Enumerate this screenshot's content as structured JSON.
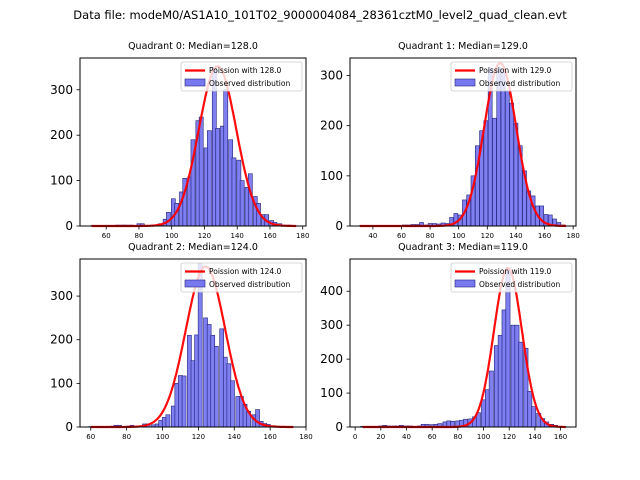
{
  "suptitle": "Data file: modeM0/AS1A10_101T02_9000004084_28361cztM0_level2_quad_clean.evt",
  "colors": {
    "bar_fill": "#7878f0",
    "bar_edge": "#23237a",
    "curve": "#ff0000"
  },
  "chart_data": [
    {
      "type": "bar",
      "title": "Quadrant 0: Median=128.0",
      "legend": [
        "Poission with 128.0",
        "Observed distribution"
      ],
      "legend_position": "top-right",
      "xlim": [
        44,
        182
      ],
      "ylim": [
        0,
        370
      ],
      "xticks": [
        60,
        80,
        100,
        120,
        140,
        160,
        180
      ],
      "yticks": [
        0,
        100,
        200,
        300
      ],
      "bin_width": 2.5,
      "bins": [
        [
          52,
          1
        ],
        [
          55,
          1
        ],
        [
          58,
          1
        ],
        [
          61,
          1
        ],
        [
          64,
          1
        ],
        [
          67,
          2
        ],
        [
          70,
          2
        ],
        [
          72,
          2
        ],
        [
          75,
          2
        ],
        [
          80,
          5
        ],
        [
          82,
          5
        ],
        [
          85,
          1
        ],
        [
          88,
          2
        ],
        [
          90,
          2
        ],
        [
          93,
          5
        ],
        [
          96,
          15
        ],
        [
          98,
          30
        ],
        [
          101,
          60
        ],
        [
          103,
          50
        ],
        [
          106,
          75
        ],
        [
          108,
          105
        ],
        [
          111,
          108
        ],
        [
          113,
          190
        ],
        [
          116,
          232
        ],
        [
          118,
          240
        ],
        [
          121,
          172
        ],
        [
          123,
          210
        ],
        [
          126,
          350
        ],
        [
          128,
          215
        ],
        [
          131,
          220
        ],
        [
          133,
          300
        ],
        [
          136,
          190
        ],
        [
          138,
          150
        ],
        [
          141,
          145
        ],
        [
          143,
          100
        ],
        [
          146,
          85
        ],
        [
          148,
          115
        ],
        [
          151,
          65
        ],
        [
          153,
          50
        ],
        [
          156,
          25
        ],
        [
          158,
          25
        ],
        [
          161,
          12
        ],
        [
          163,
          8
        ],
        [
          166,
          5
        ],
        [
          168,
          2
        ],
        [
          171,
          2
        ],
        [
          173,
          1
        ]
      ],
      "poisson_mean": 128.0,
      "poisson_peak": 352,
      "poisson_sigma": 11.4,
      "poisson_range": [
        51,
        176
      ]
    },
    {
      "type": "bar",
      "title": "Quadrant 1: Median=129.0",
      "legend": [
        "Poission with 129.0",
        "Observed distribution"
      ],
      "legend_position": "top-right",
      "xlim": [
        24,
        182
      ],
      "ylim": [
        0,
        335
      ],
      "xticks": [
        40,
        60,
        80,
        100,
        120,
        140,
        160,
        180
      ],
      "yticks": [
        0,
        100,
        200,
        300
      ],
      "bin_width": 2.8,
      "bins": [
        [
          32,
          1
        ],
        [
          35,
          1
        ],
        [
          38,
          1
        ],
        [
          41,
          1
        ],
        [
          44,
          1
        ],
        [
          47,
          1
        ],
        [
          50,
          1
        ],
        [
          53,
          1
        ],
        [
          56,
          1
        ],
        [
          59,
          1
        ],
        [
          62,
          2
        ],
        [
          65,
          2
        ],
        [
          68,
          3
        ],
        [
          71,
          3
        ],
        [
          74,
          7
        ],
        [
          77,
          2
        ],
        [
          80,
          5
        ],
        [
          83,
          5
        ],
        [
          86,
          4
        ],
        [
          89,
          6
        ],
        [
          92,
          5
        ],
        [
          95,
          17
        ],
        [
          98,
          25
        ],
        [
          101,
          22
        ],
        [
          104,
          52
        ],
        [
          107,
          62
        ],
        [
          110,
          100
        ],
        [
          113,
          160
        ],
        [
          116,
          190
        ],
        [
          119,
          210
        ],
        [
          122,
          315
        ],
        [
          125,
          215
        ],
        [
          128,
          315
        ],
        [
          131,
          310
        ],
        [
          134,
          270
        ],
        [
          137,
          245
        ],
        [
          140,
          205
        ],
        [
          143,
          160
        ],
        [
          146,
          110
        ],
        [
          149,
          70
        ],
        [
          152,
          60
        ],
        [
          155,
          40
        ],
        [
          158,
          40
        ],
        [
          161,
          23
        ],
        [
          164,
          22
        ],
        [
          167,
          14
        ],
        [
          170,
          7
        ],
        [
          173,
          2
        ]
      ],
      "poisson_mean": 129.0,
      "poisson_peak": 325,
      "poisson_sigma": 11.2,
      "poisson_range": [
        31,
        175
      ]
    },
    {
      "type": "bar",
      "title": "Quadrant 2: Median=124.0",
      "legend": [
        "Poission with 124.0",
        "Observed distribution"
      ],
      "legend_position": "top-right",
      "xlim": [
        54,
        180
      ],
      "ylim": [
        0,
        385
      ],
      "xticks": [
        60,
        80,
        100,
        120,
        140,
        160,
        180
      ],
      "yticks": [
        0,
        100,
        200,
        300
      ],
      "bin_width": 2.25,
      "bins": [
        [
          60,
          1
        ],
        [
          63,
          1
        ],
        [
          66,
          1
        ],
        [
          69,
          1
        ],
        [
          72,
          2
        ],
        [
          74,
          4
        ],
        [
          76,
          4
        ],
        [
          79,
          1
        ],
        [
          81,
          2
        ],
        [
          83,
          4
        ],
        [
          85,
          1
        ],
        [
          88,
          2
        ],
        [
          90,
          7
        ],
        [
          92,
          7
        ],
        [
          95,
          5
        ],
        [
          97,
          7
        ],
        [
          99,
          15
        ],
        [
          101,
          22
        ],
        [
          103,
          28
        ],
        [
          106,
          48
        ],
        [
          108,
          100
        ],
        [
          110,
          118
        ],
        [
          112,
          117
        ],
        [
          115,
          210
        ],
        [
          117,
          152
        ],
        [
          119,
          211
        ],
        [
          121,
          375
        ],
        [
          124,
          250
        ],
        [
          126,
          235
        ],
        [
          128,
          210
        ],
        [
          130,
          185
        ],
        [
          133,
          225
        ],
        [
          135,
          160
        ],
        [
          137,
          145
        ],
        [
          139,
          106
        ],
        [
          142,
          70
        ],
        [
          144,
          70
        ],
        [
          146,
          52
        ],
        [
          148,
          36
        ],
        [
          151,
          28
        ],
        [
          153,
          40
        ],
        [
          155,
          13
        ],
        [
          157,
          8
        ],
        [
          159,
          6
        ],
        [
          162,
          3
        ],
        [
          164,
          2
        ],
        [
          166,
          1
        ],
        [
          169,
          1
        ],
        [
          171,
          1
        ]
      ],
      "poisson_mean": 124.0,
      "poisson_peak": 368,
      "poisson_sigma": 11.0,
      "poisson_range": [
        60,
        173
      ]
    },
    {
      "type": "bar",
      "title": "Quadrant 3: Median=119.0",
      "legend": [
        "Poission with 119.0",
        "Observed distribution"
      ],
      "legend_position": "top-right",
      "xlim": [
        -4,
        172
      ],
      "ylim": [
        0,
        495
      ],
      "xticks": [
        0,
        20,
        40,
        60,
        80,
        100,
        120,
        140,
        160
      ],
      "yticks": [
        0,
        100,
        200,
        300,
        400
      ],
      "bin_width": 3.3,
      "bins": [
        [
          6,
          2
        ],
        [
          10,
          2
        ],
        [
          13,
          2
        ],
        [
          16,
          2
        ],
        [
          20,
          3
        ],
        [
          23,
          5
        ],
        [
          26,
          3
        ],
        [
          30,
          3
        ],
        [
          33,
          3
        ],
        [
          36,
          5
        ],
        [
          40,
          3
        ],
        [
          43,
          3
        ],
        [
          46,
          2
        ],
        [
          50,
          3
        ],
        [
          53,
          8
        ],
        [
          56,
          8
        ],
        [
          60,
          7
        ],
        [
          63,
          8
        ],
        [
          66,
          10
        ],
        [
          70,
          15
        ],
        [
          73,
          18
        ],
        [
          76,
          17
        ],
        [
          80,
          18
        ],
        [
          83,
          20
        ],
        [
          86,
          23
        ],
        [
          90,
          24
        ],
        [
          93,
          30
        ],
        [
          96,
          42
        ],
        [
          100,
          80
        ],
        [
          103,
          110
        ],
        [
          106,
          165
        ],
        [
          110,
          240
        ],
        [
          113,
          270
        ],
        [
          116,
          345
        ],
        [
          119,
          470
        ],
        [
          123,
          300
        ],
        [
          126,
          300
        ],
        [
          129,
          250
        ],
        [
          133,
          232
        ],
        [
          136,
          105
        ],
        [
          139,
          60
        ],
        [
          143,
          40
        ],
        [
          146,
          25
        ],
        [
          149,
          15
        ],
        [
          153,
          8
        ],
        [
          156,
          5
        ],
        [
          159,
          2
        ],
        [
          163,
          1
        ]
      ],
      "poisson_mean": 119.0,
      "poisson_peak": 468,
      "poisson_sigma": 10.9,
      "poisson_range": [
        6,
        164
      ]
    }
  ]
}
